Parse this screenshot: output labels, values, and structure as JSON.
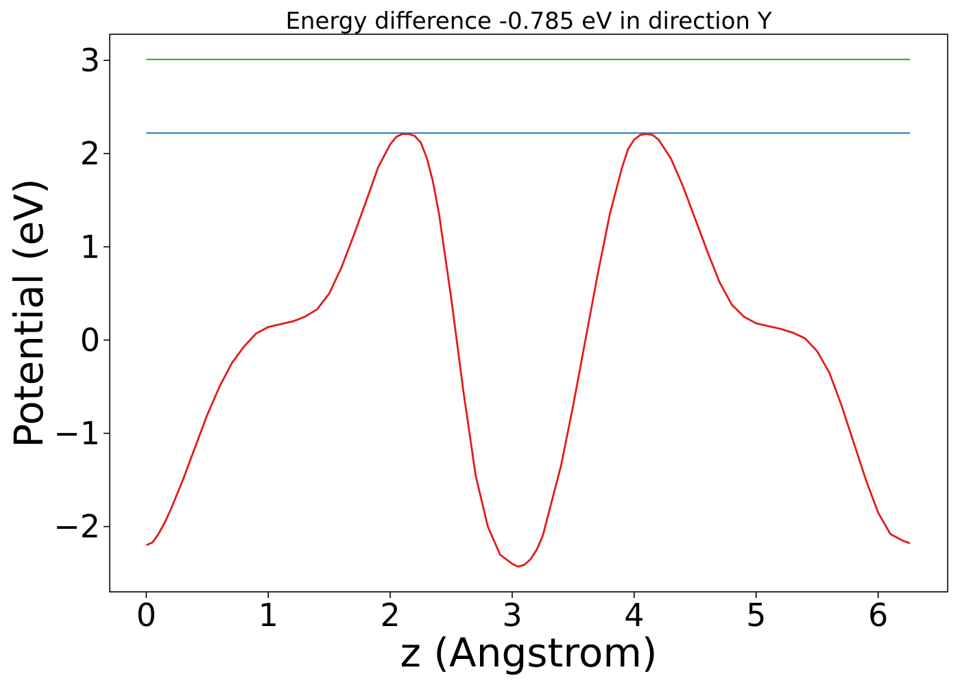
{
  "chart_data": {
    "type": "line",
    "title": "Energy difference -0.785 eV in direction Y",
    "xlabel": "z (Angstrom)",
    "ylabel": "Potential (eV)",
    "xlim": [
      -0.3,
      6.57
    ],
    "ylim": [
      -2.7,
      3.28
    ],
    "xticks": [
      0,
      1,
      2,
      3,
      4,
      5,
      6
    ],
    "xtick_labels": [
      "0",
      "1",
      "2",
      "3",
      "4",
      "5",
      "6"
    ],
    "yticks": [
      -2,
      -1,
      0,
      1,
      2,
      3
    ],
    "ytick_labels": [
      "−2",
      "−1",
      "0",
      "1",
      "2",
      "3"
    ],
    "grid": false,
    "series": [
      {
        "color": "#2ca02c",
        "x": [
          0,
          6.26
        ],
        "y": [
          3.01,
          3.01
        ]
      },
      {
        "color": "#1f77b4",
        "x": [
          0,
          6.26
        ],
        "y": [
          2.22,
          2.22
        ]
      },
      {
        "color": "#e31a1c",
        "x": [
          0,
          0.05,
          0.1,
          0.15,
          0.2,
          0.3,
          0.4,
          0.5,
          0.6,
          0.7,
          0.8,
          0.9,
          1.0,
          1.1,
          1.2,
          1.3,
          1.4,
          1.5,
          1.6,
          1.7,
          1.8,
          1.9,
          2.0,
          2.05,
          2.1,
          2.15,
          2.2,
          2.25,
          2.3,
          2.35,
          2.4,
          2.5,
          2.6,
          2.7,
          2.8,
          2.9,
          3.0,
          3.05,
          3.1,
          3.15,
          3.2,
          3.25,
          3.3,
          3.4,
          3.5,
          3.6,
          3.7,
          3.8,
          3.9,
          3.95,
          4.0,
          4.05,
          4.1,
          4.15,
          4.2,
          4.25,
          4.3,
          4.4,
          4.5,
          4.6,
          4.7,
          4.8,
          4.9,
          5.0,
          5.1,
          5.2,
          5.3,
          5.4,
          5.5,
          5.6,
          5.7,
          5.8,
          5.9,
          6.0,
          6.1,
          6.2,
          6.26
        ],
        "y": [
          -2.2,
          -2.17,
          -2.08,
          -1.96,
          -1.82,
          -1.5,
          -1.15,
          -0.8,
          -0.5,
          -0.25,
          -0.07,
          0.07,
          0.14,
          0.17,
          0.2,
          0.25,
          0.33,
          0.5,
          0.78,
          1.12,
          1.48,
          1.85,
          2.1,
          2.18,
          2.21,
          2.21,
          2.19,
          2.12,
          1.95,
          1.7,
          1.35,
          0.45,
          -0.55,
          -1.45,
          -2.0,
          -2.3,
          -2.4,
          -2.43,
          -2.41,
          -2.35,
          -2.25,
          -2.1,
          -1.85,
          -1.35,
          -0.7,
          0.0,
          0.7,
          1.35,
          1.85,
          2.05,
          2.15,
          2.2,
          2.21,
          2.2,
          2.15,
          2.05,
          1.95,
          1.65,
          1.3,
          0.95,
          0.62,
          0.38,
          0.25,
          0.18,
          0.15,
          0.12,
          0.08,
          0.02,
          -0.12,
          -0.35,
          -0.7,
          -1.1,
          -1.5,
          -1.85,
          -2.08,
          -2.15,
          -2.18
        ]
      }
    ]
  }
}
